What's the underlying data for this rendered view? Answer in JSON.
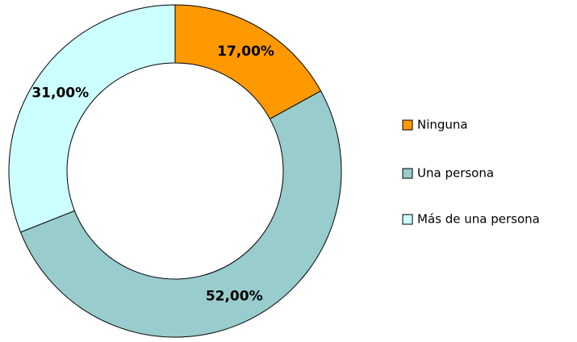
{
  "chart_data": {
    "type": "donut",
    "categories": [
      "Ninguna",
      "Una persona",
      "Más de una persona"
    ],
    "values": [
      17,
      52,
      31
    ],
    "value_labels": [
      "17,00%",
      "52,00%",
      "31,00%"
    ],
    "colors": [
      "#FF9900",
      "#99CCCC",
      "#CCFFFF"
    ],
    "legend": "right"
  }
}
